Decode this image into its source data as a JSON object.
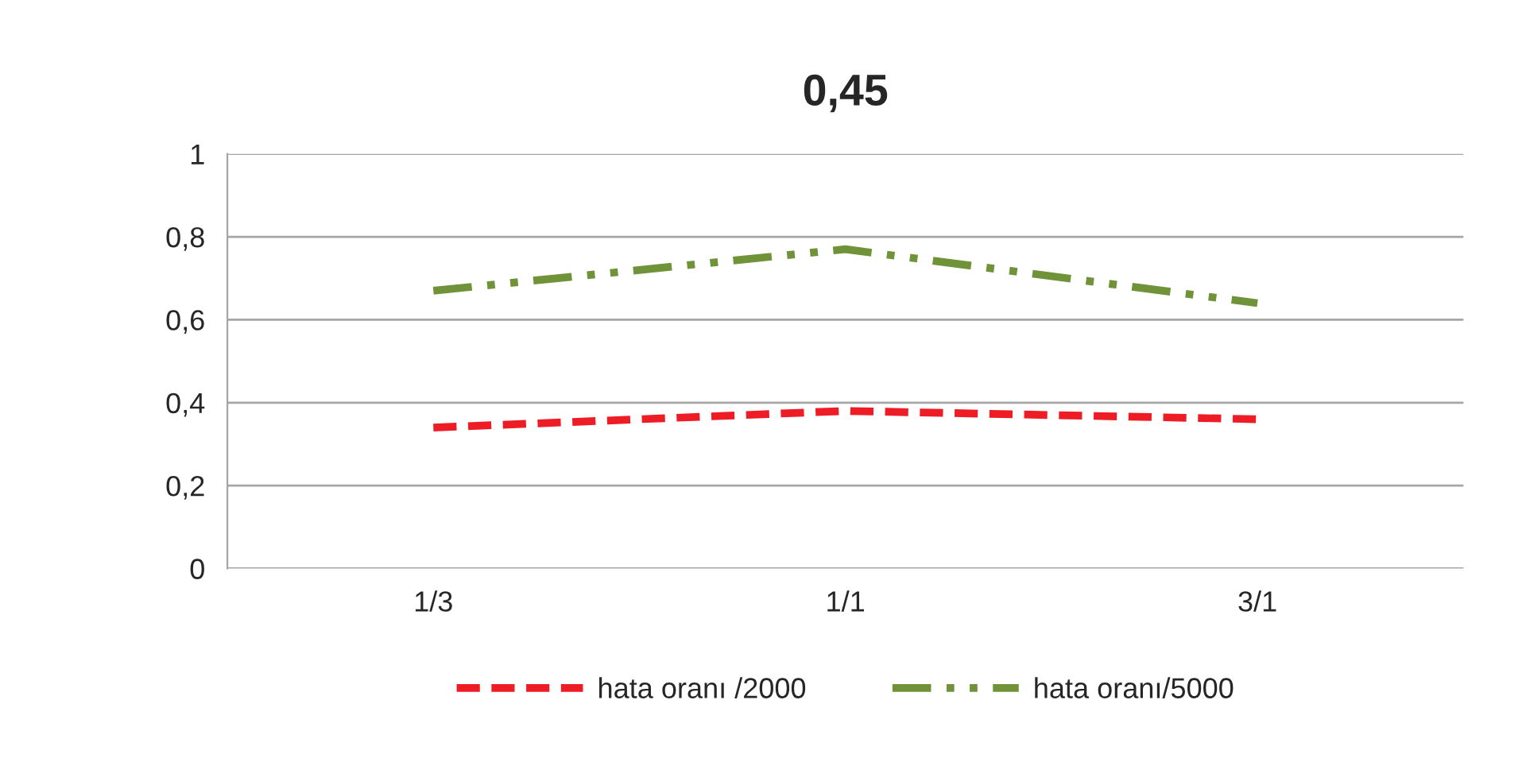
{
  "chart_data": {
    "type": "line",
    "title": "0,45",
    "categories": [
      "1/3",
      "1/1",
      "3/1"
    ],
    "series": [
      {
        "name": "hata oranı /2000",
        "color": "#ee1c25",
        "values": [
          0.34,
          0.38,
          0.36
        ],
        "line_style": "dashed"
      },
      {
        "name": "hata oranı/5000",
        "color": "#70933a",
        "values": [
          0.67,
          0.77,
          0.64
        ],
        "line_style": "dashdot"
      }
    ],
    "ylim": [
      0,
      1
    ],
    "yticks": [
      0,
      {
        "value": 0.2,
        "label": "0,2"
      },
      {
        "value": 0.4,
        "label": "0,4"
      },
      {
        "value": 0.6,
        "label": "0,6"
      },
      {
        "value": 0.8,
        "label": "0,8"
      },
      1
    ],
    "grid": "y",
    "legend": "bottom"
  }
}
